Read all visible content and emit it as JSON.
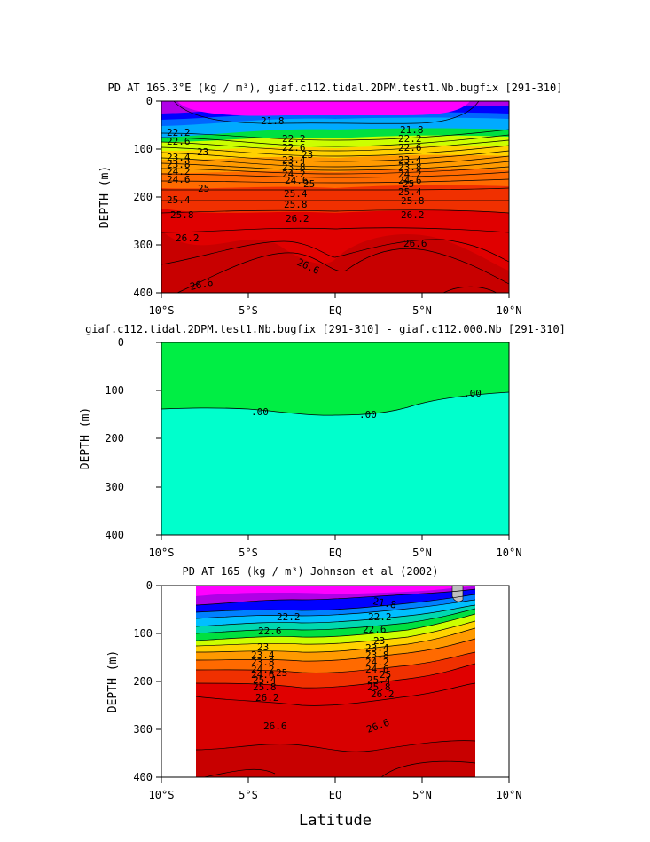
{
  "chart_data": [
    {
      "type": "heatmap",
      "title": "PD AT 165.3°E (kg / m³), giaf.c112.tidal.2DPM.test1.Nb.bugfix [291-310]",
      "ylabel": "DEPTH (m)",
      "xlabel": "",
      "xlim": [
        -10,
        10
      ],
      "ylim": [
        400,
        0
      ],
      "xticks": [
        "10°S",
        "5°S",
        "EQ",
        "5°N",
        "10°N"
      ],
      "yticks": [
        "0",
        "100",
        "200",
        "300",
        "400"
      ],
      "contour_labels": [
        "21.8",
        "22.2",
        "22.6",
        "23",
        "23.4",
        "23.8",
        "24.2",
        "24.6",
        "25",
        "25.4",
        "25.8",
        "26.2",
        "26.6"
      ]
    },
    {
      "type": "heatmap",
      "title": "giaf.c112.tidal.2DPM.test1.Nb.bugfix [291-310] - giaf.c112.000.Nb [291-310]",
      "ylabel": "DEPTH (m)",
      "xlabel": "",
      "xlim": [
        -10,
        10
      ],
      "ylim": [
        400,
        0
      ],
      "xticks": [
        "10°S",
        "5°S",
        "EQ",
        "5°N",
        "10°N"
      ],
      "yticks": [
        "0",
        "100",
        "200",
        "300",
        "400"
      ],
      "contour_labels": [
        ".00"
      ]
    },
    {
      "type": "heatmap",
      "title": "PD AT 165 (kg / m³) Johnson et al (2002)",
      "ylabel": "DEPTH (m)",
      "xlabel": "Latitude",
      "xlim": [
        -10,
        10
      ],
      "ylim": [
        400,
        0
      ],
      "data_xrange": [
        -8,
        8
      ],
      "xticks": [
        "10°S",
        "5°S",
        "EQ",
        "5°N",
        "10°N"
      ],
      "yticks": [
        "0",
        "100",
        "200",
        "300",
        "400"
      ],
      "contour_labels": [
        "21.8",
        "22.2",
        "22.6",
        "23",
        "23.4",
        "23.8",
        "24.2",
        "24.6",
        "25",
        "25.4",
        "25.8",
        "26.2",
        "26.6"
      ]
    }
  ],
  "colors": {
    "magenta": "#ff00ff",
    "purple": "#b000e6",
    "blue": "#0000ff",
    "cyan": "#00bfff",
    "green": "#00e040",
    "yellow": "#ffff00",
    "orange": "#ff8c00",
    "red": "#e00000",
    "darkred": "#c80000",
    "diff_upper": "#00ee44",
    "diff_lower": "#00ffcc"
  }
}
